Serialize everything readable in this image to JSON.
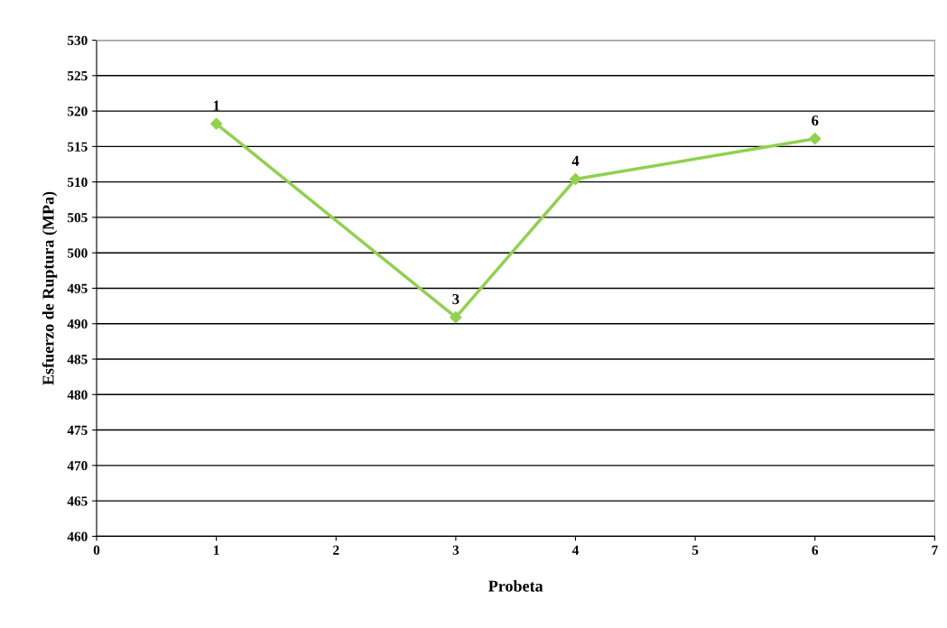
{
  "chart_data": {
    "type": "line",
    "xlabel": "Probeta",
    "ylabel": "Esfuerzo de Ruptura (MPa)",
    "x": [
      1,
      3,
      4,
      6
    ],
    "series": [
      {
        "color": "#92d050",
        "values": [
          518.2,
          490.9,
          510.4,
          516.1
        ]
      }
    ],
    "xlim": [
      0,
      7
    ],
    "xticks": [
      0,
      1,
      2,
      3,
      4,
      5,
      6,
      7
    ],
    "ylim": [
      460,
      530
    ],
    "yticks": [
      460,
      465,
      470,
      475,
      480,
      485,
      490,
      495,
      500,
      505,
      510,
      515,
      520,
      525,
      530
    ],
    "grid": "y",
    "marker": "diamond",
    "line_style": "solid",
    "legend": false,
    "annotations": [
      {
        "text": "1",
        "x": 1,
        "y": 518.2
      },
      {
        "text": "3",
        "x": 3,
        "y": 490.9
      },
      {
        "text": "4",
        "x": 4,
        "y": 510.4
      },
      {
        "text": "6",
        "x": 6,
        "y": 516.1
      }
    ]
  }
}
